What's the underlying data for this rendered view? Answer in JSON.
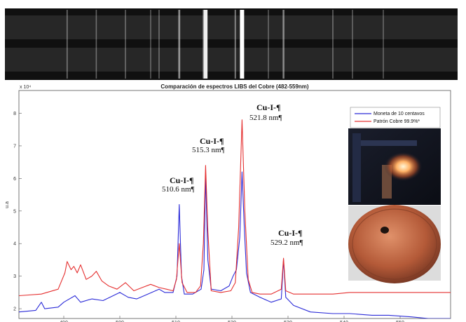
{
  "chart_data": {
    "type": "line",
    "title": "Comparación de espectros LIBS del Cobre (482-559nm)",
    "xlabel": "",
    "ylabel": "u.a",
    "y_multiplier": "x 10⁴",
    "xlim": [
      482,
      559
    ],
    "ylim": [
      1.7,
      8.7
    ],
    "x_ticks": [
      490,
      500,
      510,
      520,
      530,
      540,
      550
    ],
    "y_ticks": [
      2,
      3,
      4,
      5,
      6,
      7,
      8
    ],
    "grid": false,
    "legend_position": "top-right",
    "series": [
      {
        "name": "Moneta de 10 centavos",
        "color": "#2b2bd8",
        "points": [
          [
            482,
            1.9
          ],
          [
            485,
            1.95
          ],
          [
            486,
            2.2
          ],
          [
            486.6,
            2.0
          ],
          [
            489,
            2.05
          ],
          [
            490,
            2.2
          ],
          [
            492,
            2.4
          ],
          [
            493,
            2.2
          ],
          [
            495,
            2.3
          ],
          [
            497,
            2.25
          ],
          [
            500,
            2.5
          ],
          [
            501.5,
            2.35
          ],
          [
            503,
            2.3
          ],
          [
            505,
            2.45
          ],
          [
            507,
            2.6
          ],
          [
            508,
            2.5
          ],
          [
            509.5,
            2.5
          ],
          [
            510.2,
            3.0
          ],
          [
            510.6,
            5.2
          ],
          [
            511,
            3.0
          ],
          [
            511.5,
            2.45
          ],
          [
            513,
            2.45
          ],
          [
            514.5,
            2.6
          ],
          [
            515,
            3.2
          ],
          [
            515.3,
            6.1
          ],
          [
            515.7,
            3.5
          ],
          [
            516.3,
            2.6
          ],
          [
            518,
            2.55
          ],
          [
            519.5,
            2.7
          ],
          [
            520.2,
            3.0
          ],
          [
            520.8,
            3.2
          ],
          [
            521.4,
            4.2
          ],
          [
            521.8,
            6.2
          ],
          [
            522.2,
            4.5
          ],
          [
            522.6,
            3.1
          ],
          [
            523.3,
            2.5
          ],
          [
            525,
            2.35
          ],
          [
            527,
            2.2
          ],
          [
            528.8,
            2.3
          ],
          [
            529.2,
            3.5
          ],
          [
            529.6,
            2.35
          ],
          [
            531,
            2.1
          ],
          [
            534,
            1.9
          ],
          [
            538,
            1.85
          ],
          [
            541,
            1.85
          ],
          [
            545,
            1.8
          ],
          [
            548,
            1.8
          ],
          [
            552,
            1.75
          ],
          [
            555,
            1.7
          ],
          [
            559,
            1.7
          ]
        ]
      },
      {
        "name": "Patrón Cobre 99.9%*",
        "color": "#e53030",
        "points": [
          [
            482,
            2.4
          ],
          [
            486,
            2.45
          ],
          [
            489,
            2.6
          ],
          [
            490.2,
            3.1
          ],
          [
            490.6,
            3.45
          ],
          [
            491.3,
            3.2
          ],
          [
            491.8,
            3.3
          ],
          [
            492.4,
            3.1
          ],
          [
            493,
            3.35
          ],
          [
            494,
            2.9
          ],
          [
            495,
            3.0
          ],
          [
            495.8,
            3.15
          ],
          [
            496.8,
            2.85
          ],
          [
            498,
            2.7
          ],
          [
            499.5,
            2.6
          ],
          [
            501,
            2.8
          ],
          [
            502.5,
            2.55
          ],
          [
            504,
            2.65
          ],
          [
            505.5,
            2.75
          ],
          [
            507,
            2.65
          ],
          [
            508.3,
            2.6
          ],
          [
            509.5,
            2.55
          ],
          [
            510.1,
            2.9
          ],
          [
            510.6,
            4.0
          ],
          [
            511.1,
            2.8
          ],
          [
            512,
            2.5
          ],
          [
            513.5,
            2.5
          ],
          [
            514.4,
            2.7
          ],
          [
            514.9,
            4.0
          ],
          [
            515.3,
            6.4
          ],
          [
            515.7,
            4.4
          ],
          [
            516.3,
            2.55
          ],
          [
            518,
            2.5
          ],
          [
            519.8,
            2.55
          ],
          [
            520.6,
            2.8
          ],
          [
            521.2,
            4.5
          ],
          [
            521.8,
            7.8
          ],
          [
            522.3,
            5.0
          ],
          [
            522.9,
            2.9
          ],
          [
            523.6,
            2.5
          ],
          [
            525,
            2.45
          ],
          [
            527,
            2.45
          ],
          [
            528.8,
            2.6
          ],
          [
            529.2,
            3.55
          ],
          [
            529.6,
            2.55
          ],
          [
            531,
            2.45
          ],
          [
            534,
            2.45
          ],
          [
            538,
            2.45
          ],
          [
            541,
            2.5
          ],
          [
            545,
            2.5
          ],
          [
            549,
            2.5
          ],
          [
            554,
            2.5
          ],
          [
            559,
            2.5
          ]
        ]
      }
    ],
    "annotations": [
      {
        "name": "Cu-I-¶",
        "wavelength": "510.6 nm¶"
      },
      {
        "name": "Cu-I-¶",
        "wavelength": "515.3 nm¶"
      },
      {
        "name": "Cu-I-¶",
        "wavelength": "521.8 nm¶"
      },
      {
        "name": "Cu-I-¶",
        "wavelength": "529.2 nm¶"
      }
    ],
    "spectrum_lines": [
      {
        "x": 510.6,
        "intensity": 0.35
      },
      {
        "x": 515.3,
        "intensity": 0.9
      },
      {
        "x": 521.8,
        "intensity": 1.0
      },
      {
        "x": 529.2,
        "intensity": 0.3
      },
      {
        "x": 490.6,
        "intensity": 0.15
      },
      {
        "x": 495.8,
        "intensity": 0.12
      },
      {
        "x": 501,
        "intensity": 0.12
      },
      {
        "x": 505.5,
        "intensity": 0.1
      },
      {
        "x": 507,
        "intensity": 0.12
      },
      {
        "x": 514.9,
        "intensity": 0.2
      },
      {
        "x": 520.6,
        "intensity": 0.22
      },
      {
        "x": 526.5,
        "intensity": 0.1
      },
      {
        "x": 538,
        "intensity": 0.12
      },
      {
        "x": 541.5,
        "intensity": 0.1
      },
      {
        "x": 547,
        "intensity": 0.1
      }
    ]
  }
}
